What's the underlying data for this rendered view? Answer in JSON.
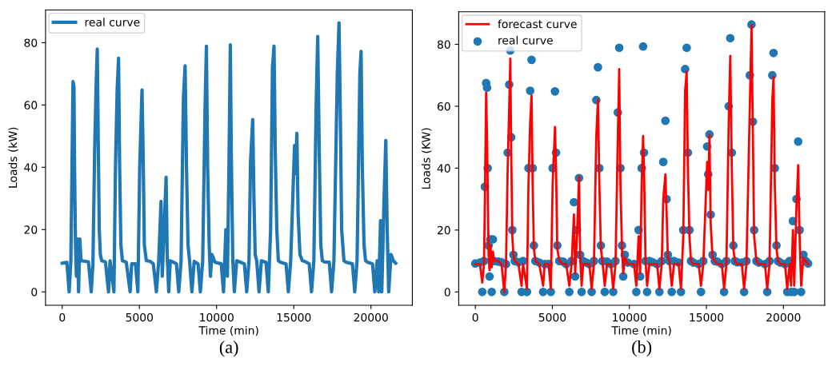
{
  "chart_data": [
    {
      "type": "line",
      "xlabel": "Time (min)",
      "ylabel": "Loads (kW)",
      "annotations": [
        "(a)"
      ],
      "legend": "top left",
      "grid": false,
      "xlim": [
        -1080,
        22680
      ],
      "ylim": [
        -4.3,
        90.5
      ],
      "xticks": [
        0,
        5000,
        10000,
        15000,
        20000
      ],
      "yticks": [
        0,
        20,
        40,
        60,
        80
      ],
      "series": [
        {
          "name": "real curve",
          "color": "#1f77b4",
          "x": [
            0,
            300,
            450,
            560,
            620,
            700,
            760,
            800,
            860,
            920,
            980,
            1060,
            1140,
            1220,
            1500,
            1700,
            1880,
            1990,
            2100,
            2200,
            2270,
            2330,
            2400,
            2470,
            2560,
            2800,
            3000,
            3100,
            3350,
            3450,
            3560,
            3650,
            3720,
            3800,
            3900,
            4150,
            4400,
            4500,
            4750,
            4900,
            5020,
            5170,
            5240,
            5320,
            5450,
            5700,
            5900,
            6100,
            6250,
            6400,
            6480,
            6600,
            6730,
            6800,
            6900,
            7000,
            7200,
            7400,
            7550,
            7700,
            7850,
            7960,
            8050,
            8150,
            8250,
            8400,
            8550,
            8800,
            8950,
            9100,
            9250,
            9340,
            9420,
            9520,
            9600,
            9700,
            9900,
            10300,
            10450,
            10600,
            10700,
            10800,
            10890,
            10950,
            11050,
            11150,
            11300,
            11500,
            11800,
            11950,
            12100,
            12200,
            12340,
            12420,
            12500,
            12600,
            12750,
            12900,
            13200,
            13350,
            13500,
            13620,
            13720,
            13800,
            13900,
            14000,
            14150,
            14500,
            14650,
            14800,
            15050,
            15120,
            15200,
            15280,
            15400,
            15550,
            15700,
            16000,
            16150,
            16300,
            16450,
            16550,
            16650,
            16750,
            16850,
            17000,
            17300,
            17450,
            17600,
            17820,
            17930,
            18020,
            18100,
            18250,
            18400,
            18800,
            18950,
            19100,
            19280,
            19360,
            19440,
            19550,
            19650,
            19800,
            20100,
            20250,
            20400,
            20500,
            20620,
            20700,
            20850,
            20960,
            21050,
            21150,
            21300,
            21450,
            21600
          ],
          "values": [
            9.2,
            9.5,
            0,
            10,
            34,
            67.5,
            66,
            40,
            15,
            5,
            17,
            0,
            17,
            10,
            9.8,
            9.6,
            0,
            9,
            45,
            67,
            78,
            50,
            20,
            12,
            10,
            9.6,
            0,
            10,
            0,
            40,
            65,
            75,
            40,
            15,
            10,
            9.5,
            0,
            9,
            9,
            0,
            40,
            64.8,
            45,
            15,
            10,
            9.8,
            9,
            0,
            10,
            29,
            5,
            20,
            36.8,
            12,
            0,
            10,
            9.5,
            9,
            0,
            10,
            62,
            72.6,
            40,
            15,
            10,
            0,
            9.8,
            9,
            0,
            10,
            58,
            78.9,
            40,
            15,
            5,
            12,
            9.5,
            9,
            0,
            20,
            5,
            40,
            79.3,
            45,
            10,
            0,
            10,
            9.6,
            9,
            0,
            10,
            42,
            55.3,
            30,
            12,
            10,
            0,
            10,
            9.5,
            0,
            20,
            72,
            78.9,
            45,
            20,
            10,
            9.5,
            9,
            0,
            10,
            47,
            38,
            50.9,
            25,
            12,
            10,
            9.8,
            9,
            0,
            10,
            60,
            82,
            45,
            15,
            10,
            9.6,
            9.5,
            0,
            10,
            70,
            86.4,
            55,
            20,
            10,
            9.5,
            9,
            0,
            10,
            70,
            77.2,
            40,
            15,
            10,
            9.5,
            9,
            0,
            10,
            0,
            22.9,
            0,
            30,
            48.6,
            20,
            0,
            12,
            10,
            9.2
          ]
        }
      ]
    },
    {
      "type": "line",
      "xlabel": "Time (min)",
      "ylabel": "Loads (KW)",
      "annotations": [
        "(b)"
      ],
      "legend": "top left",
      "grid": false,
      "xlim": [
        -1080,
        22680
      ],
      "ylim": [
        -4.3,
        90.5
      ],
      "xticks": [
        0,
        5000,
        10000,
        15000,
        20000
      ],
      "yticks": [
        0,
        20,
        40,
        60,
        80
      ],
      "series": [
        {
          "name": "forecast curve",
          "color": "#ff0000",
          "x": [
            0,
            300,
            450,
            560,
            620,
            700,
            760,
            800,
            860,
            920,
            980,
            1060,
            1140,
            1220,
            1500,
            1700,
            1880,
            1990,
            2100,
            2200,
            2270,
            2330,
            2400,
            2470,
            2560,
            2800,
            3000,
            3100,
            3350,
            3450,
            3560,
            3650,
            3720,
            3800,
            3900,
            4150,
            4400,
            4500,
            4750,
            4900,
            5020,
            5170,
            5240,
            5320,
            5450,
            5700,
            5900,
            6100,
            6250,
            6400,
            6480,
            6600,
            6730,
            6800,
            6900,
            7000,
            7200,
            7400,
            7550,
            7700,
            7850,
            7960,
            8050,
            8150,
            8250,
            8400,
            8550,
            8800,
            8950,
            9100,
            9250,
            9340,
            9420,
            9520,
            9600,
            9700,
            9900,
            10300,
            10450,
            10600,
            10700,
            10800,
            10890,
            10950,
            11050,
            11150,
            11300,
            11500,
            11800,
            11950,
            12100,
            12200,
            12340,
            12420,
            12500,
            12600,
            12750,
            12900,
            13200,
            13350,
            13500,
            13620,
            13720,
            13800,
            13900,
            14000,
            14150,
            14500,
            14650,
            14800,
            15050,
            15120,
            15200,
            15280,
            15400,
            15550,
            15700,
            16000,
            16150,
            16300,
            16450,
            16550,
            16650,
            16750,
            16850,
            17000,
            17300,
            17450,
            17600,
            17820,
            17930,
            18020,
            18100,
            18250,
            18400,
            18800,
            18950,
            19100,
            19280,
            19360,
            19440,
            19550,
            19650,
            19800,
            20100,
            20250,
            20400,
            20500,
            20620,
            20700,
            20850,
            20960,
            21050,
            21150,
            21300,
            21450,
            21600
          ],
          "values": [
            9,
            9,
            3,
            9,
            30,
            64.4,
            50,
            35,
            12,
            7,
            15,
            8,
            13,
            10,
            10,
            9,
            0,
            9,
            40,
            60,
            75.4,
            45,
            18,
            12,
            10,
            9,
            2,
            9,
            1,
            35,
            55,
            63.5,
            35,
            14,
            10,
            9,
            2,
            9,
            9,
            1,
            35,
            53.3,
            40,
            14,
            10,
            9,
            9,
            2,
            9,
            25,
            6,
            18,
            37.2,
            12,
            2,
            9,
            9,
            9,
            1,
            9,
            50,
            62.2,
            35,
            14,
            10,
            2,
            9,
            9,
            1,
            9,
            50,
            72,
            35,
            14,
            6,
            11,
            9,
            9,
            2,
            18,
            6,
            35,
            50.4,
            40,
            10,
            2,
            9,
            9,
            9,
            1,
            9,
            30,
            38,
            25,
            11,
            10,
            2,
            9,
            9,
            1,
            18,
            65,
            71.2,
            40,
            18,
            10,
            9,
            9,
            2,
            9,
            42,
            33,
            50.8,
            22,
            11,
            10,
            9,
            9,
            1,
            9,
            55,
            76.3,
            40,
            14,
            10,
            9,
            9,
            1,
            9,
            60,
            86.2,
            50,
            18,
            10,
            9,
            9,
            1,
            9,
            62,
            69.5,
            35,
            14,
            10,
            9,
            9,
            1,
            9,
            2,
            20,
            2,
            28,
            41,
            18,
            2,
            11,
            10,
            9
          ]
        },
        {
          "name": "real curve",
          "color": "#1f77b4",
          "type": "scatter",
          "x": [
            0,
            300,
            450,
            560,
            620,
            700,
            760,
            800,
            860,
            920,
            980,
            1060,
            1140,
            1220,
            1500,
            1700,
            1880,
            1990,
            2100,
            2200,
            2270,
            2330,
            2400,
            2470,
            2560,
            2800,
            3000,
            3100,
            3350,
            3450,
            3560,
            3650,
            3720,
            3800,
            3900,
            4150,
            4400,
            4500,
            4750,
            4900,
            5020,
            5170,
            5240,
            5320,
            5450,
            5700,
            5900,
            6100,
            6250,
            6400,
            6480,
            6600,
            6730,
            6800,
            6900,
            7000,
            7200,
            7400,
            7550,
            7700,
            7850,
            7960,
            8050,
            8150,
            8250,
            8400,
            8550,
            8800,
            8950,
            9100,
            9250,
            9340,
            9420,
            9520,
            9600,
            9700,
            9900,
            10300,
            10450,
            10600,
            10700,
            10800,
            10890,
            10950,
            11050,
            11150,
            11300,
            11500,
            11800,
            11950,
            12100,
            12200,
            12340,
            12420,
            12500,
            12600,
            12750,
            12900,
            13200,
            13350,
            13500,
            13620,
            13720,
            13800,
            13900,
            14000,
            14150,
            14500,
            14650,
            14800,
            15050,
            15120,
            15200,
            15280,
            15400,
            15550,
            15700,
            16000,
            16150,
            16300,
            16450,
            16550,
            16650,
            16750,
            16850,
            17000,
            17300,
            17450,
            17600,
            17820,
            17930,
            18020,
            18100,
            18250,
            18400,
            18800,
            18950,
            19100,
            19280,
            19360,
            19440,
            19550,
            19650,
            19800,
            20100,
            20250,
            20400,
            20500,
            20620,
            20700,
            20850,
            20960,
            21050,
            21150,
            21300,
            21450,
            21600
          ],
          "values": [
            9.2,
            9.5,
            0,
            10,
            34,
            67.5,
            66,
            40,
            15,
            5,
            17,
            0,
            17,
            10,
            9.8,
            9.6,
            0,
            9,
            45,
            67,
            78,
            50,
            20,
            12,
            10,
            9.6,
            0,
            10,
            0,
            40,
            65,
            75,
            40,
            15,
            10,
            9.5,
            0,
            9,
            9,
            0,
            40,
            64.8,
            45,
            15,
            10,
            9.8,
            9,
            0,
            10,
            29,
            5,
            20,
            36.8,
            12,
            0,
            10,
            9.5,
            9,
            0,
            10,
            62,
            72.6,
            40,
            15,
            10,
            0,
            9.8,
            9,
            0,
            10,
            58,
            78.9,
            40,
            15,
            5,
            12,
            9.5,
            9,
            0,
            20,
            5,
            40,
            79.3,
            45,
            10,
            0,
            10,
            9.6,
            9,
            0,
            10,
            42,
            55.3,
            30,
            12,
            10,
            0,
            10,
            9.5,
            0,
            20,
            72,
            78.9,
            45,
            20,
            10,
            9.5,
            9,
            0,
            10,
            47,
            38,
            50.9,
            25,
            12,
            10,
            9.8,
            9,
            0,
            10,
            60,
            82,
            45,
            15,
            10,
            9.6,
            9.5,
            0,
            10,
            70,
            86.4,
            55,
            20,
            10,
            9.5,
            9,
            0,
            10,
            70,
            77.2,
            40,
            15,
            10,
            9.5,
            9,
            0,
            10,
            0,
            22.9,
            0,
            30,
            48.6,
            20,
            0,
            12,
            10,
            9.2
          ]
        }
      ]
    }
  ]
}
